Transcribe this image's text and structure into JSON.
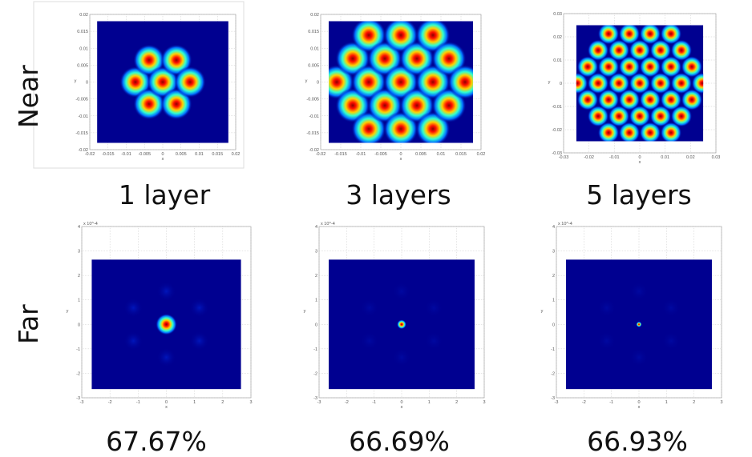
{
  "row_labels": [
    "Near",
    "Far"
  ],
  "near_titles": [
    "1 layer",
    "3 layers",
    "5 layers"
  ],
  "far_values": [
    "67.67%",
    "66.69%",
    "66.93%"
  ],
  "colors": {
    "background": "#000090",
    "peak": "#a00000"
  },
  "chart_data": [
    {
      "type": "heatmap",
      "row": "Near",
      "xlabel": "x",
      "ylabel": "y",
      "xlim": [
        -0.02,
        0.02
      ],
      "ylim": [
        -0.02,
        0.02
      ],
      "xticks": [
        "-0.02",
        "-0.015",
        "-0.01",
        "-0.005",
        "0",
        "0.005",
        "0.01",
        "0.015",
        "0.02"
      ],
      "yticks": [
        "0.02",
        "0.015",
        "0.01",
        "0.005",
        "0",
        "-0.005",
        "-0.01",
        "-0.015",
        "-0.02"
      ],
      "extent": 0.018,
      "pattern": "hexagonal spot array",
      "hex_rings": 1,
      "pitch": 0.0075,
      "spot_radius": 0.0043,
      "grid": true
    },
    {
      "type": "heatmap",
      "row": "Near",
      "xlabel": "x",
      "ylabel": "y",
      "xlim": [
        -0.02,
        0.02
      ],
      "ylim": [
        -0.02,
        0.02
      ],
      "xticks": [
        "-0.02",
        "-0.015",
        "-0.01",
        "-0.005",
        "0",
        "0.005",
        "0.01",
        "0.015",
        "0.02"
      ],
      "yticks": [
        "0.02",
        "0.015",
        "0.01",
        "0.005",
        "0",
        "-0.005",
        "-0.01",
        "-0.015",
        "-0.02"
      ],
      "extent": 0.018,
      "pattern": "hexagonal spot array",
      "hex_rings": 2,
      "pitch": 0.008,
      "spot_radius": 0.0043,
      "grid": true
    },
    {
      "type": "heatmap",
      "row": "Near",
      "xlabel": "x",
      "ylabel": "y",
      "xlim": [
        -0.03,
        0.03
      ],
      "ylim": [
        -0.03,
        0.03
      ],
      "xticks": [
        "-0.03",
        "-0.02",
        "-0.01",
        "0",
        "0.01",
        "0.02",
        "0.03"
      ],
      "yticks": [
        "0.03",
        "0.02",
        "0.01",
        "0",
        "-0.01",
        "-0.02",
        "-0.03"
      ],
      "extent": 0.025,
      "pattern": "hexagonal spot array",
      "hex_rings": 3,
      "pitch": 0.0082,
      "spot_radius": 0.0042,
      "grid": true
    },
    {
      "type": "heatmap",
      "row": "Far",
      "xlabel": "x",
      "ylabel": "y",
      "exponent": "x 10^-4",
      "xlim": [
        -3,
        3
      ],
      "ylim": [
        -3,
        4
      ],
      "xticks": [
        "-3",
        "-2",
        "-1",
        "0",
        "1",
        "2",
        "3"
      ],
      "yticks": [
        "4",
        "3",
        "2",
        "1",
        "0",
        "-1",
        "-2",
        "-3"
      ],
      "extent": 2.65,
      "central_spot_radius": 0.38,
      "side_lobe_radius": 1.35,
      "grid": true
    },
    {
      "type": "heatmap",
      "row": "Far",
      "xlabel": "x",
      "ylabel": "y",
      "exponent": "x 10^-4",
      "xlim": [
        -3,
        3
      ],
      "ylim": [
        -3,
        4
      ],
      "xticks": [
        "-3",
        "-2",
        "-1",
        "0",
        "1",
        "2",
        "3"
      ],
      "yticks": [
        "4",
        "3",
        "2",
        "1",
        "0",
        "-1",
        "-2",
        "-3"
      ],
      "extent": 2.65,
      "central_spot_radius": 0.17,
      "side_lobe_radius": 1.35,
      "grid": true
    },
    {
      "type": "heatmap",
      "row": "Far",
      "xlabel": "x",
      "ylabel": "y",
      "exponent": "x 10^-4",
      "xlim": [
        -3,
        3
      ],
      "ylim": [
        -3,
        4
      ],
      "xticks": [
        "-3",
        "-2",
        "-1",
        "0",
        "1",
        "2",
        "3"
      ],
      "yticks": [
        "4",
        "3",
        "2",
        "1",
        "0",
        "-1",
        "-2",
        "-3"
      ],
      "extent": 2.65,
      "central_spot_radius": 0.1,
      "side_lobe_radius": 1.35,
      "grid": true
    }
  ]
}
